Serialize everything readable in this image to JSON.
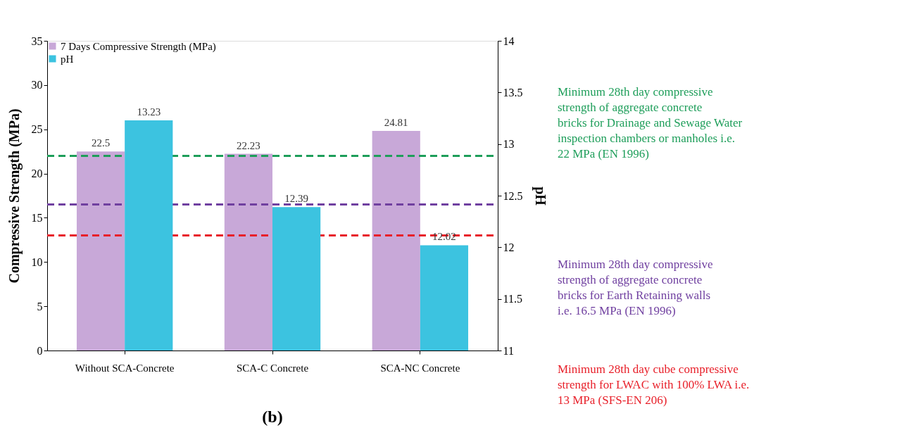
{
  "chart_data": {
    "type": "bar",
    "title": "(b)",
    "ylabel": "Compressive Strength (MPa)",
    "y2label": "pH",
    "categories": [
      "Without SCA-Concrete",
      "SCA-C Concrete",
      "SCA-NC Concrete"
    ],
    "series": [
      {
        "name": "7 Days Compressive Strength (MPa)",
        "color": "#c8a8d8",
        "values": [
          22.5,
          22.23,
          24.81
        ]
      },
      {
        "name": "pH",
        "color": "#3cc3e0",
        "values": [
          13.23,
          12.39,
          12.02
        ],
        "axis": "y2"
      }
    ],
    "ylim": [
      0,
      35
    ],
    "yticks": [
      0,
      5,
      10,
      15,
      20,
      25,
      30,
      35
    ],
    "y2lim": [
      11,
      14
    ],
    "y2ticks": [
      11,
      11.5,
      12,
      12.5,
      13,
      13.5,
      14
    ],
    "data_labels": true,
    "legend": "top left",
    "grid": false,
    "ref_lines": [
      {
        "axis": "y",
        "value": 22,
        "label": "Minimum 28th day compressive strength of aggregate concrete bricks for Drainage and Sewage Water inspection chambers or manholes i.e. 22 MPa (EN 1996)",
        "color": "#1e9e5a",
        "line_style": "dashed"
      },
      {
        "axis": "y",
        "value": 16.5,
        "label": "Minimum 28th day compressive strength of aggregate concrete bricks for Earth Retaining walls i.e. 16.5 MPa (EN 1996)",
        "color": "#7040a0",
        "line_style": "dashed"
      },
      {
        "axis": "y",
        "value": 13,
        "label": "Minimum 28th day cube compressive strength for LWAC with 100% LWA i.e. 13 MPa (SFS-EN 206)",
        "color": "#e8202a",
        "line_style": "dashed"
      }
    ]
  }
}
